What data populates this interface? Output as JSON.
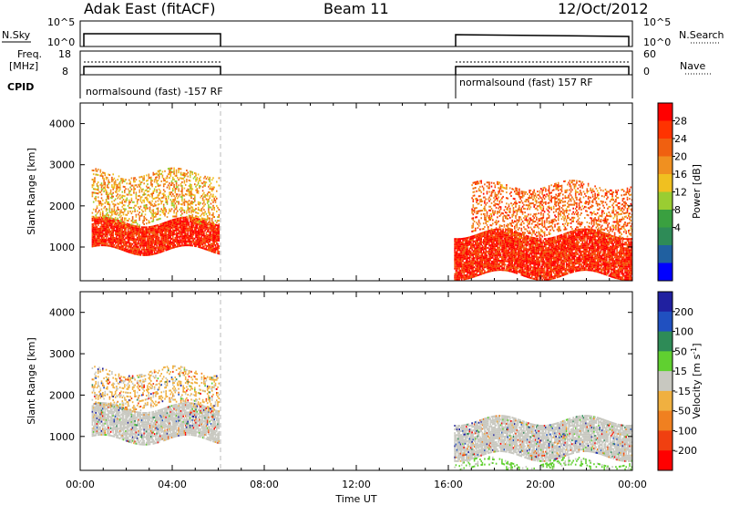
{
  "header": {
    "station": "Adak East (fitACF)",
    "beam": "Beam 11",
    "date": "12/Oct/2012"
  },
  "panels": {
    "nsky_label": "N.Sky",
    "nsearch_label": "N.Search",
    "nsky_ticks": [
      "10^5",
      "10^0"
    ],
    "nsearch_ticks": [
      "10^5",
      "10^0"
    ],
    "freq_label_1": "Freq.",
    "freq_label_2": "[MHz]",
    "freq_ticks": [
      "18",
      "8"
    ],
    "nave_label": "Nave",
    "nave_ticks": [
      "60",
      "0"
    ],
    "cpid_label": "CPID",
    "cpid_left": "normalsound (fast) -157 RF",
    "cpid_right": "normalsound (fast) 157 RF"
  },
  "chart_data": [
    {
      "type": "heatmap",
      "name": "power",
      "ylabel": "Slant Range [km]",
      "xlabel": "",
      "ylim": [
        180,
        4500
      ],
      "xlim": [
        "00:00",
        "24:00"
      ],
      "y_ticks": [
        1000,
        2000,
        3000,
        4000
      ],
      "colorbar_label": "Power [dB]",
      "colorbar_ticks": [
        "28",
        "24",
        "20",
        "16",
        "12",
        "8",
        "4"
      ],
      "colorbar_colors": [
        "#ff0000",
        "#ff3300",
        "#f06010",
        "#f09020",
        "#f0c020",
        "#9acd32",
        "#3aa040",
        "#2e8b57",
        "#2060a0",
        "#0000ff"
      ],
      "data_intervals": [
        [
          "00:00",
          "06:00"
        ],
        [
          "16:15",
          "24:00"
        ]
      ],
      "echo_bands": [
        {
          "start": "00:30",
          "end": "06:00",
          "range_low": 900,
          "range_high": 1600,
          "power": 28
        },
        {
          "start": "00:30",
          "end": "06:00",
          "range_low": 1600,
          "range_high": 2800,
          "power": 20
        },
        {
          "start": "16:15",
          "end": "24:00",
          "range_low": 300,
          "range_high": 1300,
          "power": 28
        },
        {
          "start": "17:00",
          "end": "24:00",
          "range_low": 1300,
          "range_high": 2500,
          "power": 24
        }
      ]
    },
    {
      "type": "heatmap",
      "name": "velocity",
      "ylabel": "Slant Range [km]",
      "xlabel": "Time UT",
      "ylim": [
        180,
        4500
      ],
      "xlim": [
        "00:00",
        "24:00"
      ],
      "y_ticks": [
        1000,
        2000,
        3000,
        4000
      ],
      "x_ticks": [
        "00:00",
        "04:00",
        "08:00",
        "12:00",
        "16:00",
        "20:00",
        "00:00"
      ],
      "colorbar_label": "Velocity [m s^-1]",
      "colorbar_ticks": [
        "200",
        "100",
        "50",
        "15",
        "-15",
        "-50",
        "-100",
        "-200"
      ],
      "colorbar_colors": [
        "#2020a0",
        "#2050c0",
        "#2e8b57",
        "#60d030",
        "#c8c8c0",
        "#f0b040",
        "#f08020",
        "#f04010",
        "#ff0000"
      ],
      "data_intervals": [
        [
          "00:00",
          "06:00"
        ],
        [
          "16:15",
          "24:00"
        ]
      ],
      "echo_bands": [
        {
          "start": "00:30",
          "end": "06:00",
          "range_low": 900,
          "range_high": 1700,
          "velocity": 0
        },
        {
          "start": "00:30",
          "end": "06:00",
          "range_low": 1700,
          "range_high": 2600,
          "velocity": -40
        },
        {
          "start": "16:15",
          "end": "24:00",
          "range_low": 500,
          "range_high": 1400,
          "velocity": 0
        },
        {
          "start": "16:15",
          "end": "24:00",
          "range_low": 180,
          "range_high": 400,
          "velocity": 30
        }
      ]
    }
  ]
}
